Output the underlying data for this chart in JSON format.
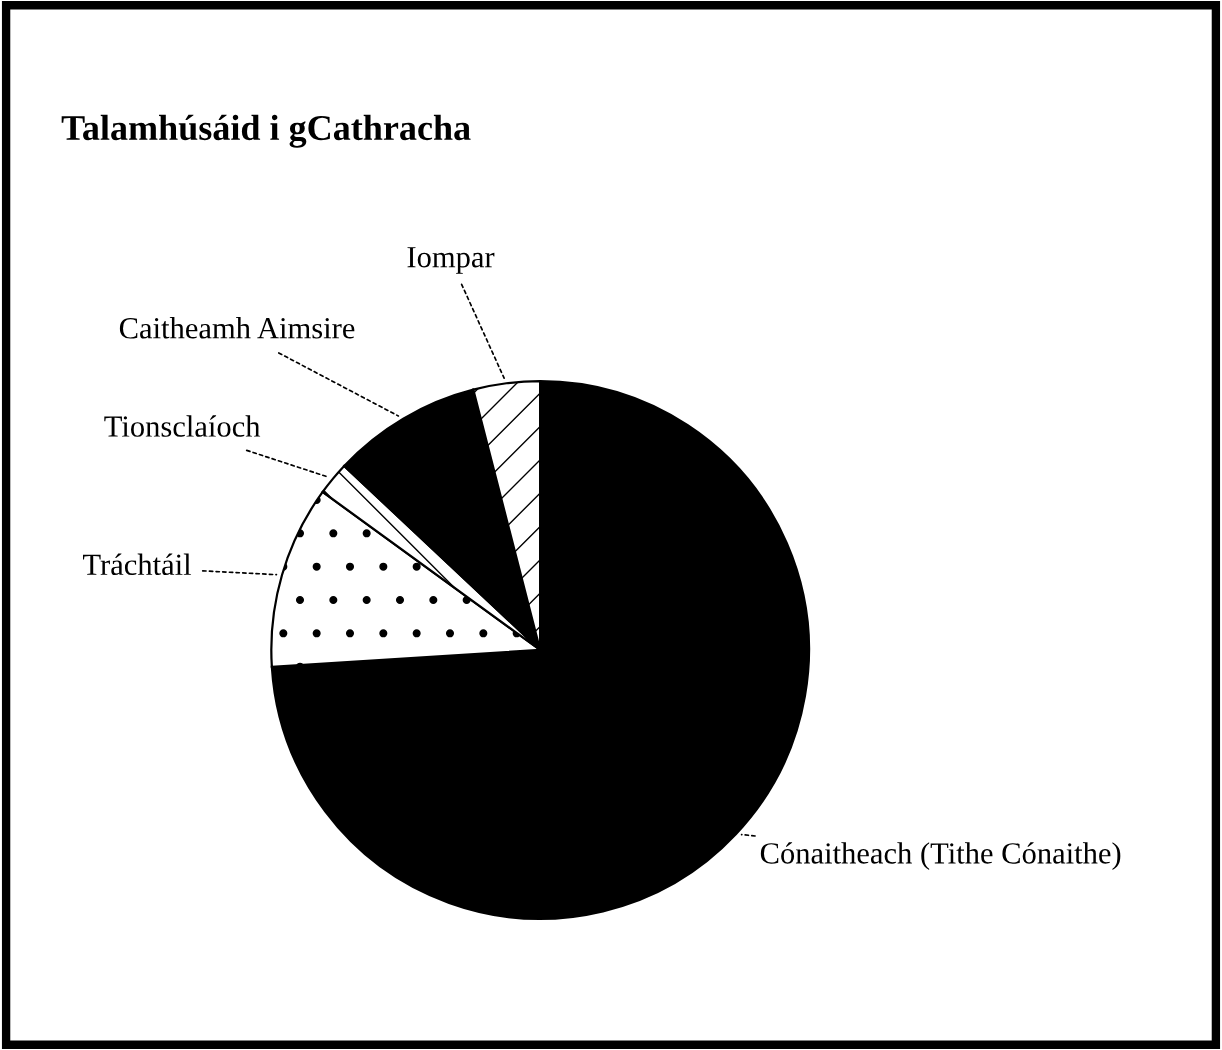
{
  "chart_data": {
    "type": "pie",
    "title": "Talamhúsáid i gCathracha",
    "categories": [
      "Cónaitheach (Tithe Cónaithe)",
      "Tráchtáil",
      "Tionsclaíoch",
      "Caitheamh Aimsire",
      "Iompar"
    ],
    "values": [
      74,
      11,
      2,
      9,
      4
    ],
    "colors": [
      "#000000",
      "#ffffff",
      "#ffffff",
      "#000000",
      "#ffffff"
    ]
  }
}
